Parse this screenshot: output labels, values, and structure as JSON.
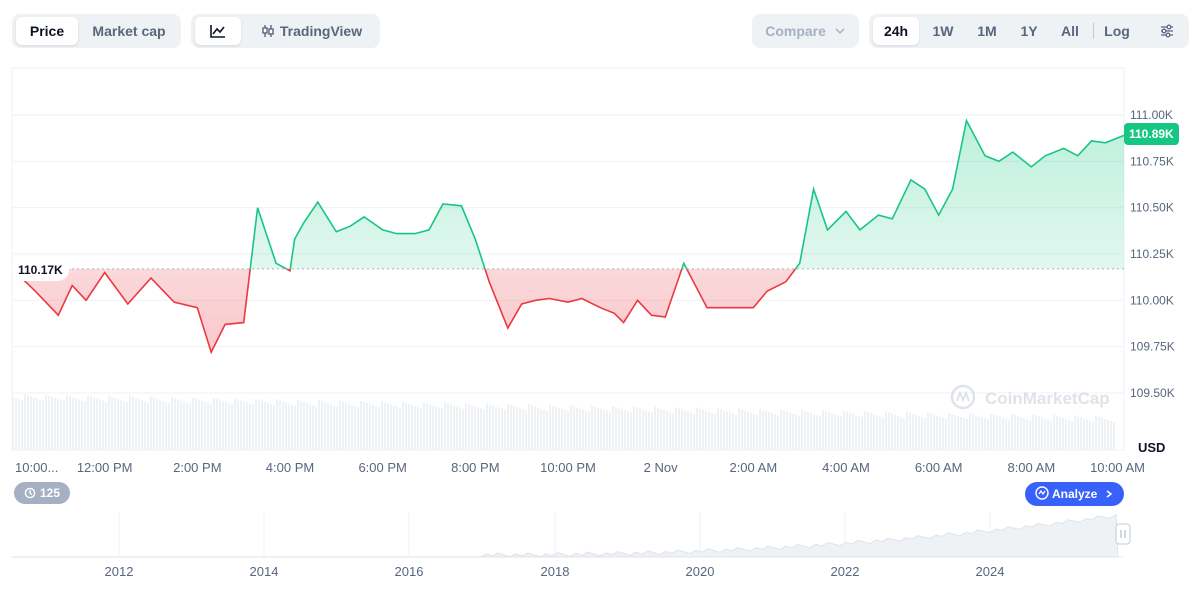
{
  "tabs": {
    "price": "Price",
    "market_cap": "Market cap"
  },
  "tools": {
    "line_icon": "line-chart-icon",
    "tradingview": "TradingView"
  },
  "compare": {
    "label": "Compare"
  },
  "ranges": [
    "24h",
    "1W",
    "1M",
    "1Y",
    "All"
  ],
  "active_range": "24h",
  "log_label": "Log",
  "watermark": "CoinMarketCap",
  "currency": "USD",
  "analyze": "Analyze",
  "history_count": "125",
  "colors": {
    "up": "#16c784",
    "down": "#ea3943",
    "accent": "#3861fb"
  },
  "chart_data": {
    "type": "line",
    "baseline": 110170,
    "current_label": "110.89K",
    "baseline_label": "110.17K",
    "ylim": [
      109300,
      111300
    ],
    "y_ticks": [
      109500,
      109750,
      110000,
      110250,
      110500,
      110750,
      111000
    ],
    "y_tick_labels": [
      "109.50K",
      "109.75K",
      "110.00K",
      "110.25K",
      "110.50K",
      "110.75K",
      "111.00K"
    ],
    "x_tick_labels": [
      "10:00...",
      "12:00 PM",
      "2:00 PM",
      "4:00 PM",
      "6:00 PM",
      "8:00 PM",
      "10:00 PM",
      "2 Nov",
      "2:00 AM",
      "4:00 AM",
      "6:00 AM",
      "8:00 AM",
      "10:00 AM"
    ],
    "x_tick_hours": [
      0,
      2,
      4,
      6,
      8,
      10,
      12,
      14,
      16,
      18,
      20,
      22,
      24
    ],
    "hours": [
      0,
      0.5,
      1,
      1.3,
      1.6,
      2,
      2.5,
      3,
      3.5,
      4,
      4.3,
      4.6,
      5,
      5.3,
      5.7,
      6,
      6.1,
      6.3,
      6.6,
      7,
      7.3,
      7.6,
      8,
      8.3,
      8.7,
      9,
      9.3,
      9.7,
      10,
      10.3,
      10.7,
      11,
      11.3,
      11.6,
      12,
      12.3,
      12.7,
      13,
      13.2,
      13.5,
      13.8,
      14.1,
      14.5,
      15,
      15.5,
      16,
      16.3,
      16.7,
      17,
      17.3,
      17.6,
      18,
      18.3,
      18.7,
      19,
      19.4,
      19.7,
      20,
      20.3,
      20.6,
      21,
      21.3,
      21.6,
      22,
      22.3,
      22.7,
      23,
      23.3,
      23.6,
      24
    ],
    "values": [
      110170,
      110050,
      109920,
      110080,
      110000,
      110150,
      109980,
      110120,
      109990,
      109960,
      109720,
      109870,
      109880,
      110500,
      110200,
      110160,
      110330,
      110420,
      110530,
      110370,
      110400,
      110450,
      110380,
      110360,
      110360,
      110380,
      110520,
      110510,
      110330,
      110100,
      109850,
      109980,
      110000,
      110010,
      109990,
      110010,
      109960,
      109930,
      109880,
      110000,
      109920,
      109910,
      110200,
      109960,
      109960,
      109960,
      110050,
      110100,
      110200,
      110600,
      110380,
      110480,
      110380,
      110460,
      110440,
      110650,
      110600,
      110460,
      110600,
      110970,
      110780,
      110750,
      110800,
      110720,
      110780,
      110820,
      110780,
      110860,
      110850,
      110890
    ],
    "volume_note": "",
    "overview": {
      "x_tick_labels": [
        "2012",
        "2014",
        "2016",
        "2018",
        "2020",
        "2022",
        "2024"
      ]
    }
  }
}
